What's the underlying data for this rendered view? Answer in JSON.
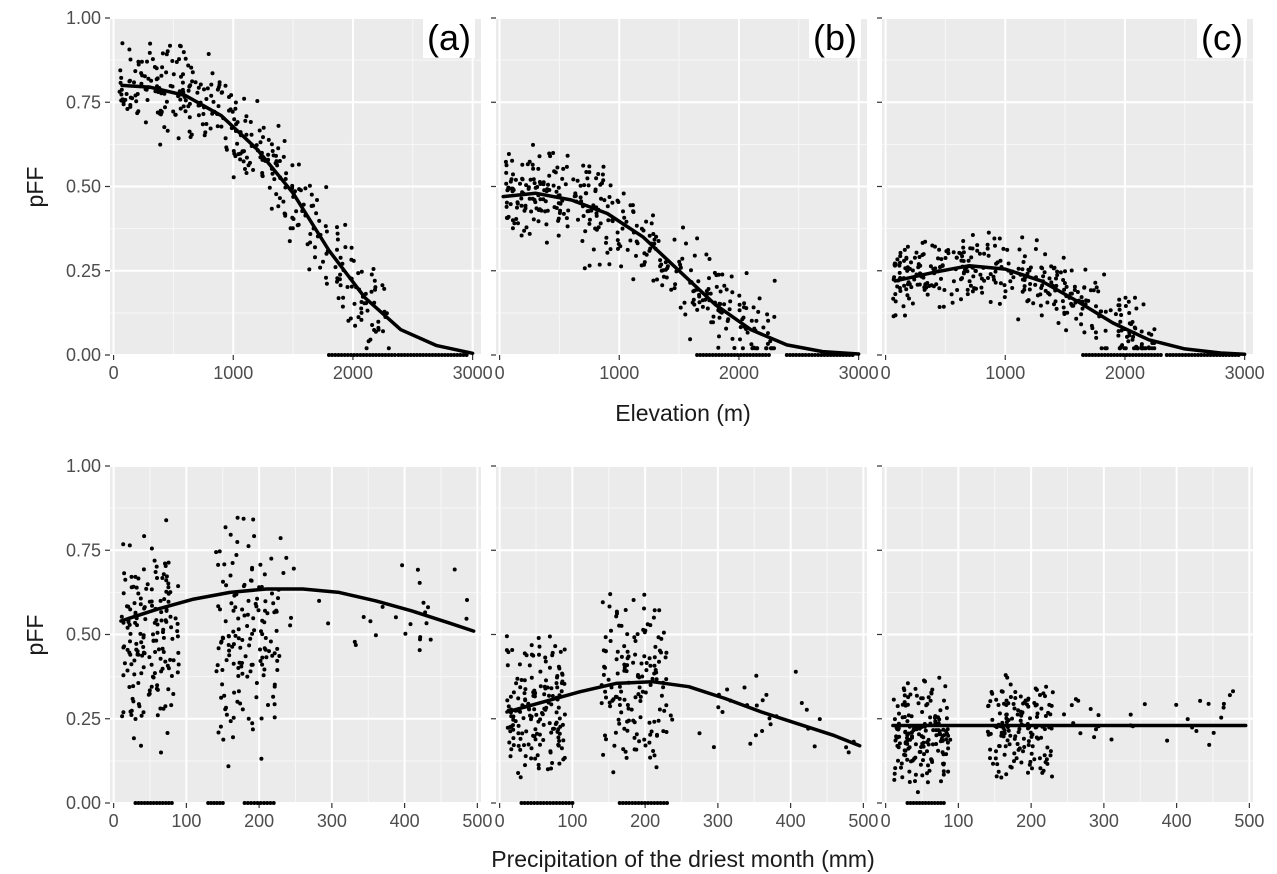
{
  "chart_data": [
    {
      "type": "scatter",
      "panel": "(a)",
      "ylabel": "pFF",
      "xlabel": "Elevation (m)",
      "xlim": [
        -30,
        3070
      ],
      "ylim": [
        0,
        1
      ],
      "xticks": [
        "0",
        "1000",
        "2000",
        "3000"
      ],
      "yticks": [
        "0.00",
        "0.25",
        "0.50",
        "0.75",
        "1.00"
      ],
      "grid": true,
      "fit_line": [
        [
          70,
          0.8
        ],
        [
          300,
          0.795
        ],
        [
          600,
          0.77
        ],
        [
          900,
          0.71
        ],
        [
          1200,
          0.61
        ],
        [
          1500,
          0.48
        ],
        [
          1800,
          0.31
        ],
        [
          2100,
          0.17
        ],
        [
          2400,
          0.075
        ],
        [
          2700,
          0.028
        ],
        [
          3000,
          0.005
        ]
      ],
      "scatter_band": {
        "x_min": 50,
        "x_max": 2300,
        "spread": 0.08,
        "n": 360
      },
      "zero_points": [
        [
          1800,
          2350
        ],
        [
          2380,
          2950
        ]
      ]
    },
    {
      "type": "scatter",
      "panel": "(b)",
      "xlim": [
        -30,
        3070
      ],
      "ylim": [
        0,
        1
      ],
      "xticks": [
        "0",
        "1000",
        "2000",
        "3000"
      ],
      "grid": true,
      "fit_line": [
        [
          30,
          0.47
        ],
        [
          300,
          0.48
        ],
        [
          600,
          0.46
        ],
        [
          900,
          0.42
        ],
        [
          1200,
          0.35
        ],
        [
          1500,
          0.25
        ],
        [
          1800,
          0.15
        ],
        [
          2100,
          0.075
        ],
        [
          2400,
          0.03
        ],
        [
          2700,
          0.01
        ],
        [
          3000,
          0.003
        ]
      ],
      "scatter_band": {
        "x_min": 50,
        "x_max": 2300,
        "spread": 0.08,
        "n": 360
      },
      "zero_points": [
        [
          1650,
          2250
        ],
        [
          2400,
          2950
        ]
      ]
    },
    {
      "type": "scatter",
      "panel": "(c)",
      "xlim": [
        -30,
        3070
      ],
      "ylim": [
        0,
        1
      ],
      "xticks": [
        "0",
        "1000",
        "2000",
        "3000"
      ],
      "grid": true,
      "fit_line": [
        [
          80,
          0.22
        ],
        [
          400,
          0.245
        ],
        [
          700,
          0.265
        ],
        [
          1000,
          0.255
        ],
        [
          1300,
          0.22
        ],
        [
          1600,
          0.16
        ],
        [
          1900,
          0.095
        ],
        [
          2200,
          0.045
        ],
        [
          2500,
          0.018
        ],
        [
          2800,
          0.006
        ],
        [
          3000,
          0.002
        ]
      ],
      "scatter_band": {
        "x_min": 60,
        "x_max": 2250,
        "spread": 0.06,
        "n": 360
      },
      "zero_points": [
        [
          1650,
          2300
        ],
        [
          2350,
          2950
        ]
      ]
    },
    {
      "type": "scatter",
      "ylabel": "pFF",
      "xlabel": "Precipitation of the driest month (mm)",
      "xlim": [
        -5,
        505
      ],
      "ylim": [
        0,
        1
      ],
      "xticks": [
        "0",
        "100",
        "200",
        "300",
        "400",
        "500"
      ],
      "yticks": [
        "0.00",
        "0.25",
        "0.50",
        "0.75",
        "1.00"
      ],
      "grid": true,
      "fit_line": [
        [
          10,
          0.54
        ],
        [
          60,
          0.575
        ],
        [
          110,
          0.605
        ],
        [
          160,
          0.625
        ],
        [
          210,
          0.635
        ],
        [
          260,
          0.635
        ],
        [
          310,
          0.625
        ],
        [
          360,
          0.6
        ],
        [
          410,
          0.57
        ],
        [
          460,
          0.535
        ],
        [
          495,
          0.51
        ]
      ],
      "clusters": [
        {
          "x": [
            10,
            90
          ],
          "y": [
            0.1,
            0.85
          ],
          "n": 170
        },
        {
          "x": [
            140,
            230
          ],
          "y": [
            0.1,
            0.89
          ],
          "n": 150
        },
        {
          "x": [
            230,
            490
          ],
          "y": [
            0.35,
            0.78
          ],
          "n": 30
        }
      ],
      "zero_points": [
        [
          30,
          80
        ],
        [
          130,
          150
        ],
        [
          180,
          220
        ]
      ]
    },
    {
      "type": "scatter",
      "xlim": [
        -5,
        505
      ],
      "ylim": [
        0,
        1
      ],
      "xticks": [
        "0",
        "100",
        "200",
        "300",
        "400",
        "500"
      ],
      "grid": true,
      "fit_line": [
        [
          10,
          0.27
        ],
        [
          60,
          0.3
        ],
        [
          110,
          0.33
        ],
        [
          160,
          0.355
        ],
        [
          210,
          0.36
        ],
        [
          260,
          0.345
        ],
        [
          310,
          0.31
        ],
        [
          360,
          0.27
        ],
        [
          410,
          0.235
        ],
        [
          460,
          0.2
        ],
        [
          495,
          0.17
        ]
      ],
      "clusters": [
        {
          "x": [
            10,
            90
          ],
          "y": [
            0.05,
            0.52
          ],
          "n": 170
        },
        {
          "x": [
            140,
            230
          ],
          "y": [
            0.05,
            0.66
          ],
          "n": 150
        },
        {
          "x": [
            230,
            490
          ],
          "y": [
            0.12,
            0.43
          ],
          "n": 30
        }
      ],
      "zero_points": [
        [
          30,
          100
        ],
        [
          165,
          230
        ]
      ]
    },
    {
      "type": "scatter",
      "xlim": [
        -5,
        505
      ],
      "ylim": [
        0,
        1
      ],
      "xticks": [
        "0",
        "100",
        "200",
        "300",
        "400",
        "500"
      ],
      "grid": true,
      "fit_line": [
        [
          10,
          0.23
        ],
        [
          495,
          0.23
        ]
      ],
      "clusters": [
        {
          "x": [
            10,
            90
          ],
          "y": [
            0.03,
            0.39
          ],
          "n": 170
        },
        {
          "x": [
            140,
            230
          ],
          "y": [
            0.05,
            0.39
          ],
          "n": 150
        },
        {
          "x": [
            230,
            490
          ],
          "y": [
            0.15,
            0.36
          ],
          "n": 30
        }
      ],
      "zero_points": [
        [
          30,
          80
        ]
      ]
    }
  ]
}
